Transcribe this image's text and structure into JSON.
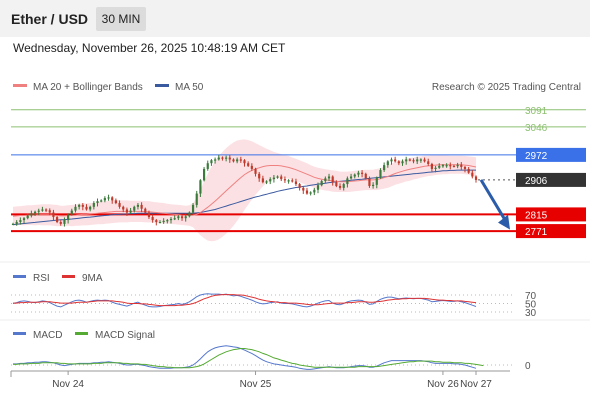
{
  "header": {
    "title": "Ether / USD",
    "interval": "30 MIN"
  },
  "timestamp": "Wednesday, November 26, 2025 10:48:19 AM CET",
  "legend": {
    "ma20": "MA 20 + Bollinger Bands",
    "ma50": "MA 50",
    "credit": "Research © 2025 Trading Central"
  },
  "colors": {
    "up": "#3a7a3a",
    "down": "#c0392b",
    "bollinger": "#fadadd",
    "ma20": "#f08080",
    "ma50": "#3a5aa0",
    "target": "#8cc070",
    "resistance_line": "#3a70e8",
    "support": "#e60000",
    "current": "#333333",
    "rsi": "#5577cc",
    "rsi_ma": "#dd3333",
    "macd": "#5577cc",
    "macd_signal": "#55aa33"
  },
  "chart_data": [
    {
      "type": "candlestick",
      "name": "price",
      "ylim": [
        2700,
        3130
      ],
      "x_tick_labels": [
        "Nov 24",
        "Nov 25",
        "Nov 26",
        "Nov 27"
      ],
      "levels": [
        {
          "value": 3091,
          "label": "3091",
          "kind": "target"
        },
        {
          "value": 3046,
          "label": "3046",
          "kind": "target"
        },
        {
          "value": 2972,
          "label": "2972",
          "kind": "resistance"
        },
        {
          "value": 2906,
          "label": "2906",
          "kind": "current"
        },
        {
          "value": 2815,
          "label": "2815",
          "kind": "support"
        },
        {
          "value": 2771,
          "label": "2771",
          "kind": "support"
        }
      ],
      "forecast_arrow": {
        "from": 2906,
        "to": 2775
      },
      "close_values": [
        2790,
        2795,
        2800,
        2805,
        2812,
        2818,
        2822,
        2825,
        2828,
        2826,
        2820,
        2808,
        2795,
        2790,
        2800,
        2815,
        2825,
        2835,
        2840,
        2835,
        2828,
        2835,
        2845,
        2850,
        2852,
        2858,
        2860,
        2852,
        2845,
        2835,
        2828,
        2820,
        2825,
        2835,
        2840,
        2830,
        2820,
        2808,
        2800,
        2795,
        2795,
        2798,
        2800,
        2803,
        2805,
        2810,
        2805,
        2810,
        2820,
        2840,
        2870,
        2905,
        2935,
        2950,
        2958,
        2960,
        2965,
        2962,
        2965,
        2960,
        2955,
        2960,
        2958,
        2950,
        2943,
        2935,
        2922,
        2910,
        2900,
        2902,
        2908,
        2912,
        2915,
        2908,
        2905,
        2905,
        2902,
        2895,
        2885,
        2878,
        2870,
        2873,
        2880,
        2892,
        2903,
        2910,
        2915,
        2900,
        2890,
        2885,
        2895,
        2910,
        2915,
        2920,
        2925,
        2922,
        2910,
        2890,
        2893,
        2912,
        2932,
        2945,
        2955,
        2960,
        2955,
        2950,
        2955,
        2960,
        2958,
        2955,
        2960,
        2960,
        2955,
        2948,
        2935,
        2938,
        2943,
        2945,
        2945,
        2943,
        2942,
        2946,
        2940,
        2935,
        2925,
        2915,
        2906
      ],
      "ma20_values": [
        2810,
        2811,
        2812,
        2812,
        2813,
        2813,
        2813,
        2814,
        2814,
        2814,
        2814,
        2813,
        2812,
        2811,
        2811,
        2812,
        2812,
        2813,
        2814,
        2815,
        2815,
        2816,
        2817,
        2818,
        2819,
        2820,
        2821,
        2822,
        2823,
        2823,
        2823,
        2823,
        2823,
        2823,
        2823,
        2823,
        2822,
        2822,
        2821,
        2820,
        2819,
        2818,
        2817,
        2816,
        2815,
        2814,
        2813,
        2812,
        2812,
        2813,
        2815,
        2820,
        2827,
        2834,
        2842,
        2850,
        2859,
        2868,
        2877,
        2886,
        2895,
        2904,
        2912,
        2920,
        2926,
        2931,
        2935,
        2938,
        2941,
        2943,
        2944,
        2944,
        2944,
        2943,
        2941,
        2939,
        2936,
        2933,
        2929,
        2925,
        2921,
        2917,
        2913,
        2910,
        2908,
        2906,
        2905,
        2903,
        2902,
        2901,
        2901,
        2901,
        2902,
        2903,
        2904,
        2905,
        2906,
        2906,
        2906,
        2907,
        2909,
        2912,
        2915,
        2919,
        2923,
        2926,
        2929,
        2932,
        2934,
        2936,
        2938,
        2940,
        2942,
        2943,
        2944,
        2945,
        2946,
        2946,
        2946,
        2946,
        2946,
        2946,
        2946,
        2945,
        2944,
        2942,
        2940
      ],
      "ma50_values": [
        2788,
        2789,
        2790,
        2791,
        2792,
        2793,
        2794,
        2795,
        2796,
        2797,
        2798,
        2799,
        2800,
        2801,
        2801,
        2802,
        2803,
        2804,
        2805,
        2806,
        2807,
        2808,
        2809,
        2810,
        2811,
        2812,
        2813,
        2814,
        2815,
        2815,
        2816,
        2816,
        2817,
        2817,
        2818,
        2818,
        2818,
        2818,
        2818,
        2818,
        2818,
        2818,
        2818,
        2818,
        2818,
        2818,
        2818,
        2818,
        2818,
        2818,
        2819,
        2820,
        2822,
        2824,
        2826,
        2828,
        2831,
        2834,
        2837,
        2840,
        2843,
        2846,
        2849,
        2852,
        2855,
        2858,
        2861,
        2863,
        2866,
        2868,
        2871,
        2873,
        2876,
        2878,
        2880,
        2882,
        2884,
        2886,
        2887,
        2889,
        2890,
        2892,
        2893,
        2895,
        2896,
        2897,
        2899,
        2900,
        2901,
        2902,
        2903,
        2904,
        2905,
        2906,
        2907,
        2908,
        2909,
        2910,
        2911,
        2912,
        2913,
        2914,
        2915,
        2916,
        2917,
        2918,
        2919,
        2920,
        2921,
        2922,
        2923,
        2924,
        2925,
        2926,
        2927,
        2928,
        2929,
        2930,
        2930,
        2931,
        2931,
        2932,
        2932,
        2932,
        2932,
        2932,
        2932
      ],
      "bb_width": [
        25,
        25,
        25,
        26,
        26,
        26,
        27,
        27,
        28,
        28,
        28,
        28,
        28,
        27,
        27,
        27,
        28,
        28,
        29,
        29,
        29,
        29,
        29,
        29,
        30,
        30,
        30,
        30,
        30,
        29,
        29,
        29,
        28,
        28,
        28,
        28,
        28,
        28,
        27,
        27,
        27,
        27,
        26,
        26,
        26,
        26,
        26,
        26,
        27,
        32,
        45,
        60,
        75,
        88,
        98,
        105,
        110,
        112,
        113,
        112,
        110,
        106,
        100,
        93,
        85,
        77,
        68,
        60,
        52,
        45,
        40,
        36,
        33,
        31,
        30,
        30,
        29,
        29,
        29,
        29,
        29,
        28,
        28,
        28,
        28,
        28,
        28,
        28,
        28,
        27,
        27,
        27,
        27,
        27,
        27,
        27,
        27,
        27,
        27,
        28,
        28,
        29,
        30,
        30,
        30,
        30,
        30,
        30,
        30,
        29,
        29,
        28,
        28,
        27,
        27,
        26,
        26,
        25,
        25,
        24,
        24,
        24,
        24,
        24,
        24,
        25,
        26
      ]
    },
    {
      "type": "line",
      "name": "rsi",
      "legend": [
        "RSI",
        "9MA"
      ],
      "ylim": [
        30,
        70
      ],
      "y_tick_labels": [
        "70",
        "50",
        "30"
      ],
      "series": [
        {
          "name": "RSI",
          "values": [
            50,
            52,
            55,
            56,
            55,
            53,
            52,
            54,
            56,
            55,
            52,
            48,
            44,
            42,
            46,
            50,
            54,
            57,
            58,
            56,
            53,
            55,
            57,
            58,
            57,
            58,
            57,
            53,
            50,
            48,
            46,
            44,
            47,
            51,
            53,
            49,
            46,
            43,
            42,
            42,
            43,
            45,
            46,
            47,
            48,
            50,
            48,
            50,
            54,
            60,
            66,
            70,
            72,
            73,
            72,
            72,
            72,
            71,
            72,
            70,
            68,
            69,
            67,
            64,
            61,
            58,
            54,
            51,
            49,
            50,
            52,
            53,
            54,
            51,
            50,
            50,
            49,
            47,
            45,
            43,
            42,
            44,
            47,
            51,
            54,
            56,
            57,
            51,
            48,
            47,
            50,
            54,
            56,
            57,
            58,
            57,
            53,
            48,
            49,
            55,
            60,
            63,
            65,
            65,
            63,
            61,
            62,
            63,
            62,
            61,
            62,
            62,
            60,
            58,
            54,
            55,
            56,
            57,
            56,
            55,
            55,
            56,
            54,
            52,
            49,
            46,
            43
          ]
        },
        {
          "name": "9MA",
          "values": [
            51,
            51,
            52,
            52,
            53,
            53,
            53,
            53,
            54,
            54,
            54,
            53,
            52,
            51,
            51,
            51,
            51,
            52,
            53,
            53,
            53,
            54,
            55,
            56,
            56,
            56,
            56,
            56,
            55,
            54,
            53,
            51,
            50,
            50,
            50,
            49,
            49,
            48,
            47,
            46,
            45,
            45,
            45,
            45,
            45,
            46,
            46,
            47,
            48,
            50,
            53,
            57,
            61,
            64,
            67,
            69,
            70,
            71,
            71,
            71,
            71,
            70,
            70,
            69,
            67,
            65,
            63,
            60,
            58,
            56,
            55,
            54,
            53,
            52,
            52,
            51,
            51,
            51,
            50,
            49,
            48,
            47,
            47,
            47,
            48,
            49,
            50,
            51,
            51,
            51,
            51,
            52,
            52,
            53,
            54,
            54,
            54,
            53,
            53,
            54,
            55,
            56,
            58,
            59,
            60,
            60,
            61,
            61,
            62,
            62,
            62,
            62,
            62,
            61,
            60,
            59,
            58,
            58,
            57,
            57,
            56,
            56,
            56,
            55,
            54,
            53,
            52
          ]
        }
      ]
    },
    {
      "type": "line",
      "name": "macd",
      "legend": [
        "MACD",
        "MACD Signal"
      ],
      "y_tick_labels": [
        "0"
      ],
      "series": [
        {
          "name": "MACD",
          "values": [
            2,
            2,
            3,
            3,
            4,
            4,
            5,
            5,
            6,
            6,
            5,
            4,
            2,
            0,
            -1,
            0,
            1,
            2,
            3,
            3,
            3,
            3,
            4,
            4,
            5,
            5,
            6,
            5,
            4,
            3,
            1,
            0,
            0,
            1,
            1,
            0,
            -1,
            -3,
            -4,
            -5,
            -6,
            -6,
            -6,
            -6,
            -5,
            -5,
            -5,
            -4,
            -3,
            0,
            5,
            11,
            18,
            24,
            28,
            31,
            33,
            34,
            35,
            34,
            33,
            32,
            30,
            27,
            24,
            21,
            17,
            13,
            9,
            6,
            4,
            2,
            1,
            0,
            -1,
            -2,
            -3,
            -4,
            -6,
            -7,
            -8,
            -8,
            -7,
            -6,
            -5,
            -4,
            -3,
            -4,
            -5,
            -5,
            -5,
            -4,
            -3,
            -2,
            -1,
            -1,
            -2,
            -4,
            -4,
            -2,
            1,
            4,
            6,
            8,
            8,
            8,
            8,
            8,
            8,
            8,
            8,
            8,
            7,
            6,
            4,
            3,
            3,
            3,
            3,
            3,
            2,
            2,
            1,
            0,
            -2,
            -4,
            -6
          ]
        },
        {
          "name": "MACD Signal",
          "values": [
            1,
            1,
            2,
            2,
            2,
            3,
            3,
            3,
            4,
            4,
            4,
            4,
            4,
            3,
            3,
            2,
            2,
            2,
            2,
            2,
            2,
            2,
            3,
            3,
            3,
            4,
            4,
            4,
            4,
            4,
            3,
            3,
            2,
            2,
            2,
            1,
            1,
            0,
            -1,
            -2,
            -3,
            -3,
            -4,
            -4,
            -5,
            -5,
            -5,
            -5,
            -5,
            -4,
            -3,
            -1,
            2,
            6,
            10,
            14,
            18,
            21,
            24,
            26,
            28,
            29,
            30,
            30,
            29,
            28,
            26,
            24,
            21,
            19,
            16,
            13,
            11,
            9,
            7,
            5,
            3,
            2,
            0,
            -1,
            -2,
            -3,
            -4,
            -4,
            -4,
            -4,
            -4,
            -4,
            -4,
            -4,
            -4,
            -4,
            -4,
            -4,
            -3,
            -3,
            -3,
            -3,
            -3,
            -3,
            -2,
            -1,
            0,
            1,
            2,
            3,
            4,
            5,
            6,
            6,
            7,
            7,
            7,
            7,
            7,
            6,
            6,
            5,
            5,
            5,
            4,
            4,
            4,
            3,
            3,
            2,
            1,
            0,
            -1
          ]
        }
      ]
    }
  ]
}
